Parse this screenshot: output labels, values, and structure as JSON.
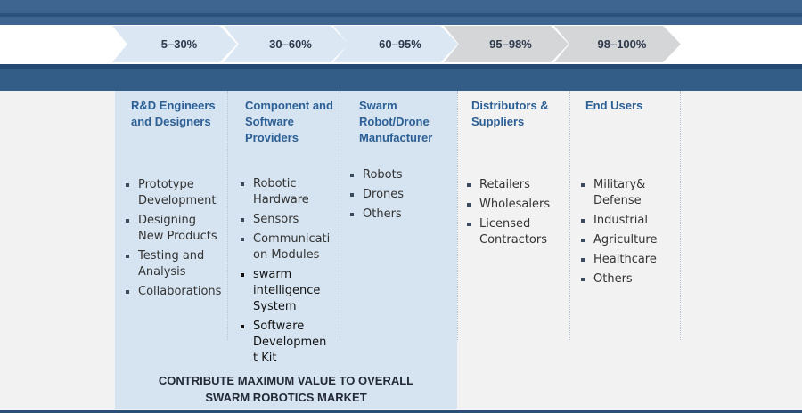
{
  "stages": [
    "5–30%",
    "30–60%",
    "60–95%",
    "95–98%",
    "98–100%"
  ],
  "columns": [
    {
      "heading": "R&D Engineers\nand Designers",
      "items": [
        "Prototype\nDevelopment",
        "Designing\nNew Products",
        "Testing and\nAnalysis",
        "Collaborations"
      ]
    },
    {
      "heading": "Component and\nSoftware\nProviders",
      "items": [
        "Robotic\nHardware",
        "Sensors",
        "Communicati\non Modules",
        "swarm\nintelligence\nSystem",
        "Software\nDevelopmen\nt Kit"
      ]
    },
    {
      "heading": "Swarm\nRobot/Drone\nManufacturer",
      "items": [
        "Robots",
        "Drones",
        "Others"
      ]
    },
    {
      "heading": "Distributors &\nSuppliers",
      "items": [
        "Retailers",
        "Wholesalers",
        "Licensed\nContractors"
      ]
    },
    {
      "heading": "End Users",
      "items": [
        "Military&\nDefense",
        "Industrial",
        "Agriculture",
        "Healthcare",
        "Others"
      ]
    }
  ],
  "footer": "CONTRIBUTE MAXIMUM VALUE TO OVERALL\nSWARM ROBOTICS MARKET"
}
